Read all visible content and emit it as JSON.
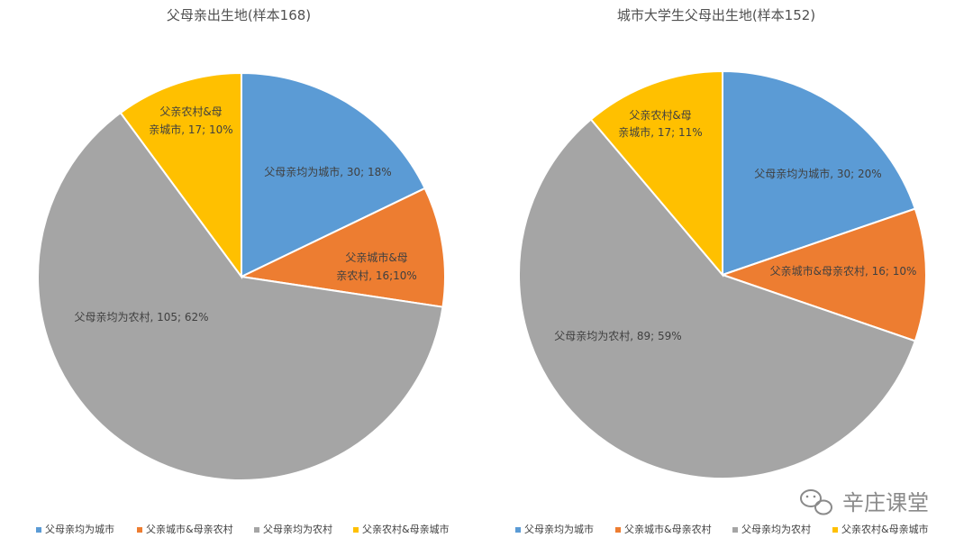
{
  "chart_data": [
    {
      "type": "pie",
      "title": "父母亲出生地(样本168)",
      "categories": [
        "父母亲均为城市",
        "父亲城市&母亲农村",
        "父母亲均为农村",
        "父亲农村&母亲城市"
      ],
      "values": [
        30,
        16,
        105,
        17
      ],
      "percentages": [
        18,
        10,
        62,
        10
      ],
      "labels": [
        "父母亲均为城市, 30; 18%",
        "父亲城市&母亲农村, 16;10%",
        "父母亲均为农村, 105; 62%",
        "父亲农村&母亲城市, 17; 10%"
      ],
      "colors": [
        "#5B9BD5",
        "#ED7D31",
        "#A5A5A5",
        "#FFC000"
      ],
      "legend_position": "bottom",
      "legend": [
        "父母亲均为城市",
        "父亲城市&母亲农村",
        "父母亲均为农村",
        "父亲农村&母亲城市"
      ]
    },
    {
      "type": "pie",
      "title": "城市大学生父母出生地(样本152)",
      "categories": [
        "父母亲均为城市",
        "父亲城市&母亲农村",
        "父母亲均为农村",
        "父亲农村&母亲城市"
      ],
      "values": [
        30,
        16,
        89,
        17
      ],
      "percentages": [
        20,
        10,
        59,
        11
      ],
      "labels": [
        "父母亲均为城市, 30; 20%",
        "父亲城市&母亲农村, 16; 10%",
        "父母亲均为农村, 89; 59%",
        "父亲农村&母亲城市, 17; 11%"
      ],
      "colors": [
        "#5B9BD5",
        "#ED7D31",
        "#A5A5A5",
        "#FFC000"
      ],
      "legend_position": "bottom",
      "legend": [
        "父母亲均为城市",
        "父亲城市&母亲农村",
        "父母亲均为农村",
        "父亲农村&母亲城市"
      ]
    }
  ],
  "watermark": {
    "text": "辛庄课堂",
    "icon": "wechat-icon"
  }
}
